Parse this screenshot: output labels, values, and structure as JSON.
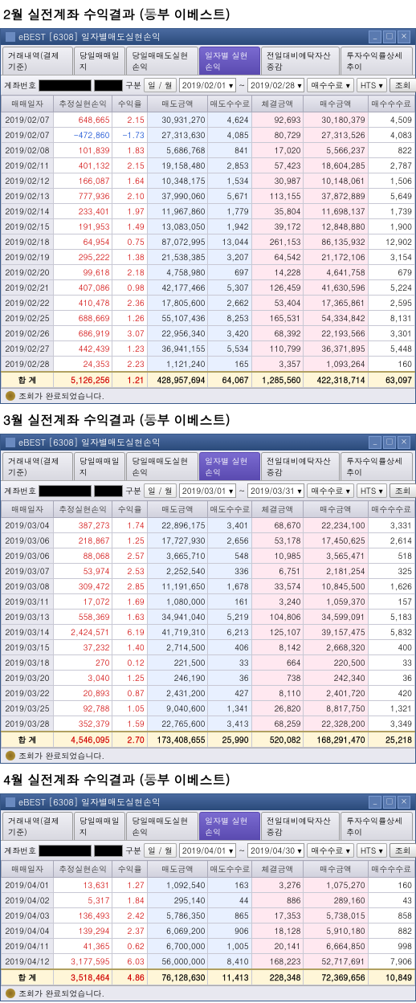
{
  "sections": [
    {
      "title": "2월 실전계좌 수익결과 (동부 이베스트)",
      "titlebar": "eBEST  [6308] 일자별매도실현손익",
      "tabs": [
        "거래내역(결제기준)",
        "당일매매일지",
        "당일매매도실현손익",
        "일자별 실현손익",
        "전일대비예탁자산증감",
        "투자수익률상세추이"
      ],
      "activeTab": 3,
      "account": "계좌번호",
      "periodLabel": "구분",
      "periodOpt": "일 / 월",
      "date1": "2019/02/01",
      "date2": "2019/02/28",
      "chips": [
        "매수수료",
        "HTS"
      ],
      "btns": [
        "조회",
        "주의사항"
      ],
      "cols": [
        "매매일자",
        "추정실현손익",
        "수익율",
        "매도금액",
        "매도수수료",
        "체결금액",
        "매수금액",
        "매수수수료"
      ],
      "widths": [
        60,
        68,
        40,
        70,
        50,
        60,
        74,
        54
      ],
      "rows": [
        [
          "2019/02/07",
          "648,665",
          "2.15",
          "30,931,270",
          "4,624",
          "92,693",
          "30,180,379",
          "4,509"
        ],
        [
          "2019/02/07",
          "-472,860",
          "-1.73",
          "27,313,630",
          "4,085",
          "80,729",
          "27,313,526",
          "4,083"
        ],
        [
          "2019/02/08",
          "101,839",
          "1.83",
          "5,686,768",
          "841",
          "17,020",
          "5,566,237",
          "822"
        ],
        [
          "2019/02/11",
          "401,132",
          "2.15",
          "19,158,480",
          "2,853",
          "57,423",
          "18,604,285",
          "2,787"
        ],
        [
          "2019/02/12",
          "166,087",
          "1.64",
          "10,348,175",
          "1,534",
          "30,987",
          "10,148,061",
          "1,506"
        ],
        [
          "2019/02/13",
          "777,936",
          "2.10",
          "37,990,060",
          "5,671",
          "113,155",
          "37,872,889",
          "5,649"
        ],
        [
          "2019/02/14",
          "233,401",
          "1.97",
          "11,967,860",
          "1,779",
          "35,804",
          "11,698,137",
          "1,739"
        ],
        [
          "2019/02/15",
          "191,953",
          "1.49",
          "13,083,050",
          "1,942",
          "39,172",
          "12,848,880",
          "1,900"
        ],
        [
          "2019/02/18",
          "64,954",
          "0.75",
          "87,072,995",
          "13,044",
          "261,153",
          "86,135,932",
          "12,902"
        ],
        [
          "2019/02/19",
          "295,222",
          "1.38",
          "21,538,385",
          "3,207",
          "64,542",
          "21,172,106",
          "3,154"
        ],
        [
          "2019/02/20",
          "99,618",
          "2.18",
          "4,758,980",
          "697",
          "14,228",
          "4,641,758",
          "679"
        ],
        [
          "2019/02/21",
          "407,086",
          "0.98",
          "42,177,466",
          "5,307",
          "126,459",
          "41,630,596",
          "5,224"
        ],
        [
          "2019/02/22",
          "410,478",
          "2.36",
          "17,805,600",
          "2,662",
          "53,404",
          "17,365,861",
          "2,595"
        ],
        [
          "2019/02/25",
          "688,669",
          "1.26",
          "55,107,436",
          "8,253",
          "165,531",
          "54,334,842",
          "8,131"
        ],
        [
          "2019/02/26",
          "686,919",
          "3.07",
          "22,956,340",
          "3,420",
          "68,392",
          "22,193,566",
          "3,301"
        ],
        [
          "2019/02/27",
          "442,439",
          "1.23",
          "36,941,155",
          "5,534",
          "110,799",
          "36,371,895",
          "5,448"
        ],
        [
          "2019/02/28",
          "24,353",
          "2.23",
          "1,121,240",
          "165",
          "3,357",
          "1,093,264",
          "160"
        ]
      ],
      "total": [
        "합 계",
        "5,126,256",
        "1.21",
        "428,957,694",
        "64,067",
        "1,285,560",
        "422,318,714",
        "63,097"
      ],
      "status": "조회가 완료되었습니다."
    },
    {
      "title": "3월 실전계좌 수익결과 (동부 이베스트)",
      "titlebar": "eBEST  [6308] 일자별매도실현손익",
      "tabs": [
        "거래내역(결제기준)",
        "당일매매일지",
        "당일매매도실현손익",
        "일자별 실현손익",
        "전일대비예탁자산증감",
        "투자수익률상세추이"
      ],
      "activeTab": 3,
      "account": "계좌번호",
      "periodLabel": "구분",
      "periodOpt": "일 / 월",
      "date1": "2019/03/01",
      "date2": "2019/03/31",
      "chips": [
        "매수수료",
        "HTS"
      ],
      "btns": [
        "조회",
        "주의사항"
      ],
      "cols": [
        "매매일자",
        "추정실현손익",
        "수익율",
        "매도금액",
        "매도수수료",
        "체결금액",
        "매수금액",
        "매수수수료"
      ],
      "widths": [
        60,
        68,
        40,
        70,
        50,
        60,
        74,
        54
      ],
      "rows": [
        [
          "2019/03/04",
          "387,273",
          "1.74",
          "22,896,175",
          "3,401",
          "68,670",
          "22,234,100",
          "3,331"
        ],
        [
          "2019/03/06",
          "218,867",
          "1.25",
          "17,727,930",
          "2,656",
          "53,178",
          "17,450,625",
          "2,614"
        ],
        [
          "2019/03/06",
          "88,068",
          "2.57",
          "3,665,710",
          "548",
          "10,985",
          "3,565,471",
          "518"
        ],
        [
          "2019/03/07",
          "53,974",
          "2.53",
          "2,252,540",
          "336",
          "6,751",
          "2,181,254",
          "325"
        ],
        [
          "2019/03/08",
          "309,472",
          "2.85",
          "11,191,650",
          "1,678",
          "33,574",
          "10,845,500",
          "1,626"
        ],
        [
          "2019/03/11",
          "17,072",
          "1.69",
          "1,080,000",
          "161",
          "3,240",
          "1,059,370",
          "157"
        ],
        [
          "2019/03/13",
          "558,369",
          "1.63",
          "34,941,040",
          "5,219",
          "104,806",
          "34,599,091",
          "5,183"
        ],
        [
          "2019/03/14",
          "2,424,571",
          "6.19",
          "41,719,310",
          "6,213",
          "125,107",
          "39,157,475",
          "5,832"
        ],
        [
          "2019/03/15",
          "37,232",
          "1.40",
          "2,714,500",
          "406",
          "8,142",
          "2,668,320",
          "400"
        ],
        [
          "2019/03/18",
          "270",
          "0.12",
          "221,500",
          "33",
          "664",
          "220,500",
          "33"
        ],
        [
          "2019/03/20",
          "3,040",
          "1.25",
          "246,190",
          "36",
          "738",
          "242,340",
          "36"
        ],
        [
          "2019/03/22",
          "20,893",
          "0.87",
          "2,431,200",
          "427",
          "8,110",
          "2,401,720",
          "420"
        ],
        [
          "2019/03/25",
          "92,788",
          "1.05",
          "9,040,600",
          "1,341",
          "26,820",
          "8,817,750",
          "1,321"
        ],
        [
          "2019/03/28",
          "352,379",
          "1.59",
          "22,765,600",
          "3,413",
          "68,259",
          "22,328,200",
          "3,349"
        ]
      ],
      "total": [
        "합 계",
        "4,546,095",
        "2.70",
        "173,408,655",
        "25,990",
        "520,082",
        "168,291,470",
        "25,218"
      ],
      "status": "조회가 완료되었습니다."
    },
    {
      "title": "4월 실전계좌 수익결과 (동부 이베스트)",
      "titlebar": "eBEST  [6308] 일자별매도실현손익",
      "tabs": [
        "거래내역(결제기준)",
        "당일매매일지",
        "당일매매도실현손익",
        "일자별 실현손익",
        "전일대비예탁자산증감",
        "투자수익률상세추이"
      ],
      "activeTab": 3,
      "account": "계좌번호",
      "periodLabel": "구분",
      "periodOpt": "일 / 월",
      "date1": "2019/04/01",
      "date2": "2019/04/30",
      "chips": [
        "매수수료",
        "HTS"
      ],
      "btns": [
        "조회",
        "주의사항"
      ],
      "cols": [
        "매매일자",
        "추정실현손익",
        "수익율",
        "매도금액",
        "매도수수료",
        "체결금액",
        "매수금액",
        "매수수수료"
      ],
      "widths": [
        60,
        68,
        40,
        70,
        50,
        60,
        74,
        54
      ],
      "rows": [
        [
          "2019/04/01",
          "13,631",
          "1.27",
          "1,092,540",
          "163",
          "3,276",
          "1,075,270",
          "160"
        ],
        [
          "2019/04/02",
          "5,317",
          "1.84",
          "295,140",
          "44",
          "886",
          "289,160",
          "43"
        ],
        [
          "2019/04/03",
          "136,493",
          "2.42",
          "5,786,350",
          "865",
          "17,353",
          "5,738,015",
          "858"
        ],
        [
          "2019/04/04",
          "139,294",
          "2.37",
          "6,069,200",
          "906",
          "18,128",
          "5,910,180",
          "882"
        ],
        [
          "2019/04/11",
          "41,365",
          "0.62",
          "6,700,000",
          "1,005",
          "20,141",
          "6,664,850",
          "998"
        ],
        [
          "2019/04/12",
          "3,177,595",
          "6.03",
          "56,000,000",
          "8,410",
          "168,223",
          "52,717,691",
          "7,906"
        ]
      ],
      "total": [
        "합 계",
        "3,518,464",
        "4.86",
        "76,128,630",
        "11,413",
        "228,348",
        "72,369,656",
        "10,849"
      ],
      "status": "조회가 완료되었습니다."
    }
  ]
}
